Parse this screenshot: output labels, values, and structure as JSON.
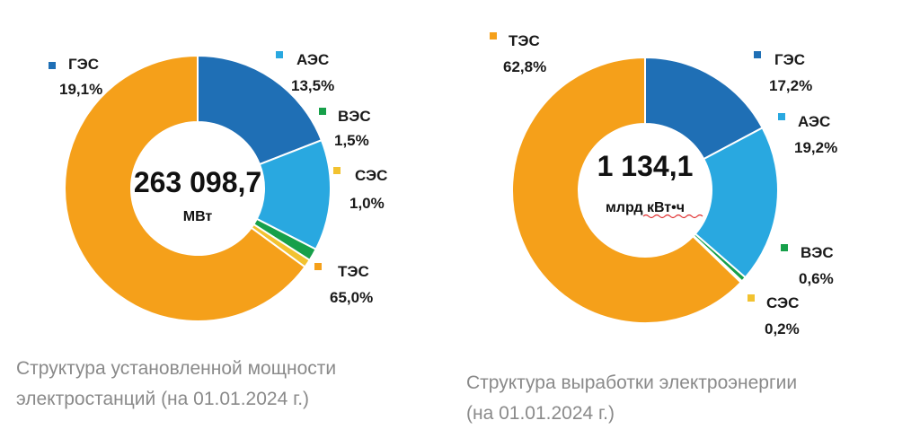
{
  "chart_data": [
    {
      "type": "pie",
      "variant": "donut",
      "center_value": "263 098,7",
      "center_unit": "МВт",
      "caption_lines": [
        "Структура установленной мощности",
        "электростанций (на 01.01.2024 г.)"
      ],
      "slices": [
        {
          "name": "ГЭС",
          "value": 19.1,
          "label": "19,1%",
          "color": "#1f6fb5"
        },
        {
          "name": "АЭС",
          "value": 13.5,
          "label": "13,5%",
          "color": "#29a8e0"
        },
        {
          "name": "ВЭС",
          "value": 1.5,
          "label": "1,5%",
          "color": "#17a04a"
        },
        {
          "name": "СЭС",
          "value": 1.0,
          "label": "1,0%",
          "color": "#f2c230"
        },
        {
          "name": "ТЭС",
          "value": 65.0,
          "label": "65,0%",
          "color": "#f5a01a"
        }
      ],
      "start_slice": "ГЭС"
    },
    {
      "type": "pie",
      "variant": "donut",
      "center_value": "1 134,1",
      "center_unit": "млрд кВт•ч",
      "caption_lines": [
        "Структура выработки электроэнергии",
        "(на 01.01.2024 г.)"
      ],
      "slices": [
        {
          "name": "ТЭС",
          "value": 62.8,
          "label": "62,8%",
          "color": "#f5a01a"
        },
        {
          "name": "ГЭС",
          "value": 17.2,
          "label": "17,2%",
          "color": "#1f6fb5"
        },
        {
          "name": "АЭС",
          "value": 19.2,
          "label": "19,2%",
          "color": "#29a8e0"
        },
        {
          "name": "ВЭС",
          "value": 0.6,
          "label": "0,6%",
          "color": "#17a04a"
        },
        {
          "name": "СЭС",
          "value": 0.2,
          "label": "0,2%",
          "color": "#f2c230"
        }
      ],
      "start_slice": "ГЭС"
    }
  ]
}
